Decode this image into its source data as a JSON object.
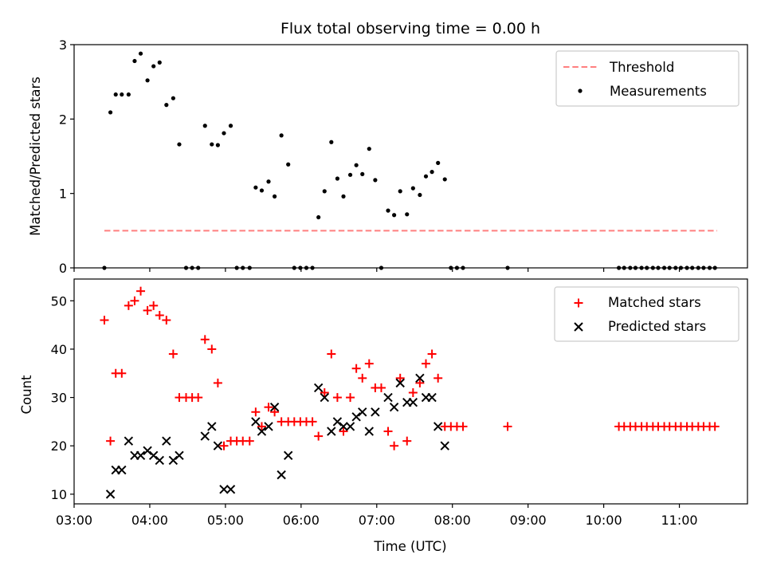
{
  "chart_data": [
    {
      "type": "scatter",
      "title": "Flux total observing time = 0.00 h",
      "xlabel": "",
      "ylabel": "Matched/Predicted stars",
      "ylim": [
        0,
        3
      ],
      "yticks": [
        0,
        1,
        2,
        3
      ],
      "xlim_hours": [
        3.0,
        11.9
      ],
      "grid": false,
      "legend_position": "upper right",
      "threshold": {
        "name": "Threshold",
        "value": 0.5,
        "x_range_hours": [
          3.4,
          11.5
        ],
        "color": "#ff7f7f",
        "style": "dashed"
      },
      "series": [
        {
          "name": "Measurements",
          "color": "#000000",
          "marker": "dot",
          "points": [
            [
              3.4,
              0.0
            ],
            [
              3.48,
              2.09
            ],
            [
              3.55,
              2.33
            ],
            [
              3.63,
              2.33
            ],
            [
              3.72,
              2.33
            ],
            [
              3.8,
              2.78
            ],
            [
              3.88,
              2.88
            ],
            [
              3.97,
              2.52
            ],
            [
              4.05,
              2.71
            ],
            [
              4.13,
              2.76
            ],
            [
              4.22,
              2.19
            ],
            [
              4.31,
              2.28
            ],
            [
              4.39,
              1.66
            ],
            [
              4.48,
              0.0
            ],
            [
              4.56,
              0.0
            ],
            [
              4.64,
              0.0
            ],
            [
              4.73,
              1.91
            ],
            [
              4.82,
              1.66
            ],
            [
              4.9,
              1.65
            ],
            [
              4.98,
              1.81
            ],
            [
              5.07,
              1.91
            ],
            [
              5.15,
              0.0
            ],
            [
              5.23,
              0.0
            ],
            [
              5.32,
              0.0
            ],
            [
              5.4,
              1.08
            ],
            [
              5.48,
              1.04
            ],
            [
              5.57,
              1.16
            ],
            [
              5.65,
              0.96
            ],
            [
              5.74,
              1.78
            ],
            [
              5.83,
              1.39
            ],
            [
              5.91,
              0.0
            ],
            [
              5.99,
              0.0
            ],
            [
              6.07,
              0.0
            ],
            [
              6.15,
              0.0
            ],
            [
              6.23,
              0.68
            ],
            [
              6.31,
              1.03
            ],
            [
              6.4,
              1.69
            ],
            [
              6.48,
              1.2
            ],
            [
              6.56,
              0.96
            ],
            [
              6.65,
              1.25
            ],
            [
              6.73,
              1.38
            ],
            [
              6.81,
              1.26
            ],
            [
              6.9,
              1.6
            ],
            [
              6.98,
              1.18
            ],
            [
              7.06,
              0.0
            ],
            [
              7.15,
              0.77
            ],
            [
              7.23,
              0.71
            ],
            [
              7.31,
              1.03
            ],
            [
              7.4,
              0.72
            ],
            [
              7.48,
              1.07
            ],
            [
              7.57,
              0.98
            ],
            [
              7.65,
              1.23
            ],
            [
              7.73,
              1.29
            ],
            [
              7.81,
              1.41
            ],
            [
              7.9,
              1.19
            ],
            [
              7.98,
              0.0
            ],
            [
              8.06,
              0.0
            ],
            [
              8.14,
              0.0
            ],
            [
              8.73,
              0.0
            ],
            [
              10.2,
              0.0
            ],
            [
              10.27,
              0.0
            ],
            [
              10.35,
              0.0
            ],
            [
              10.42,
              0.0
            ],
            [
              10.5,
              0.0
            ],
            [
              10.57,
              0.0
            ],
            [
              10.65,
              0.0
            ],
            [
              10.72,
              0.0
            ],
            [
              10.8,
              0.0
            ],
            [
              10.87,
              0.0
            ],
            [
              10.95,
              0.0
            ],
            [
              11.02,
              0.0
            ],
            [
              11.1,
              0.0
            ],
            [
              11.17,
              0.0
            ],
            [
              11.25,
              0.0
            ],
            [
              11.32,
              0.0
            ],
            [
              11.4,
              0.0
            ],
            [
              11.47,
              0.0
            ]
          ]
        }
      ]
    },
    {
      "type": "scatter",
      "title": "",
      "xlabel": "Time (UTC)",
      "ylabel": "Count",
      "ylim": [
        8,
        54.5
      ],
      "yticks": [
        10,
        20,
        30,
        40,
        50
      ],
      "xlim_hours": [
        3.0,
        11.9
      ],
      "xticks": [
        "03:00",
        "04:00",
        "05:00",
        "06:00",
        "07:00",
        "08:00",
        "09:00",
        "10:00",
        "11:00"
      ],
      "grid": false,
      "legend_position": "upper right",
      "series": [
        {
          "name": "Matched stars",
          "color": "#ff0000",
          "marker": "plus",
          "points": [
            [
              3.4,
              46
            ],
            [
              3.48,
              21
            ],
            [
              3.55,
              35
            ],
            [
              3.63,
              35
            ],
            [
              3.72,
              49
            ],
            [
              3.8,
              50
            ],
            [
              3.88,
              52
            ],
            [
              3.97,
              48
            ],
            [
              4.05,
              49
            ],
            [
              4.13,
              47
            ],
            [
              4.22,
              46
            ],
            [
              4.31,
              39
            ],
            [
              4.39,
              30
            ],
            [
              4.48,
              30
            ],
            [
              4.56,
              30
            ],
            [
              4.64,
              30
            ],
            [
              4.73,
              42
            ],
            [
              4.82,
              40
            ],
            [
              4.9,
              33
            ],
            [
              4.98,
              20
            ],
            [
              5.07,
              21
            ],
            [
              5.15,
              21
            ],
            [
              5.23,
              21
            ],
            [
              5.32,
              21
            ],
            [
              5.4,
              27
            ],
            [
              5.48,
              24
            ],
            [
              5.57,
              28
            ],
            [
              5.65,
              27
            ],
            [
              5.74,
              25
            ],
            [
              5.83,
              25
            ],
            [
              5.91,
              25
            ],
            [
              5.99,
              25
            ],
            [
              6.07,
              25
            ],
            [
              6.15,
              25
            ],
            [
              6.23,
              22
            ],
            [
              6.31,
              31
            ],
            [
              6.4,
              39
            ],
            [
              6.48,
              30
            ],
            [
              6.56,
              23
            ],
            [
              6.65,
              30
            ],
            [
              6.73,
              36
            ],
            [
              6.81,
              34
            ],
            [
              6.9,
              37
            ],
            [
              6.98,
              32
            ],
            [
              7.06,
              32
            ],
            [
              7.15,
              23
            ],
            [
              7.23,
              20
            ],
            [
              7.31,
              34
            ],
            [
              7.4,
              21
            ],
            [
              7.48,
              31
            ],
            [
              7.57,
              33
            ],
            [
              7.65,
              37
            ],
            [
              7.73,
              39
            ],
            [
              7.81,
              34
            ],
            [
              7.9,
              24
            ],
            [
              7.98,
              24
            ],
            [
              8.06,
              24
            ],
            [
              8.14,
              24
            ],
            [
              8.73,
              24
            ],
            [
              10.2,
              24
            ],
            [
              10.27,
              24
            ],
            [
              10.35,
              24
            ],
            [
              10.42,
              24
            ],
            [
              10.5,
              24
            ],
            [
              10.57,
              24
            ],
            [
              10.65,
              24
            ],
            [
              10.72,
              24
            ],
            [
              10.8,
              24
            ],
            [
              10.87,
              24
            ],
            [
              10.95,
              24
            ],
            [
              11.02,
              24
            ],
            [
              11.1,
              24
            ],
            [
              11.17,
              24
            ],
            [
              11.25,
              24
            ],
            [
              11.32,
              24
            ],
            [
              11.4,
              24
            ],
            [
              11.47,
              24
            ]
          ]
        },
        {
          "name": "Predicted stars",
          "color": "#000000",
          "marker": "x",
          "points": [
            [
              3.48,
              10
            ],
            [
              3.55,
              15
            ],
            [
              3.63,
              15
            ],
            [
              3.72,
              21
            ],
            [
              3.8,
              18
            ],
            [
              3.88,
              18
            ],
            [
              3.97,
              19
            ],
            [
              4.05,
              18
            ],
            [
              4.13,
              17
            ],
            [
              4.22,
              21
            ],
            [
              4.31,
              17
            ],
            [
              4.39,
              18
            ],
            [
              4.73,
              22
            ],
            [
              4.82,
              24
            ],
            [
              4.9,
              20
            ],
            [
              4.98,
              11
            ],
            [
              5.07,
              11
            ],
            [
              5.4,
              25
            ],
            [
              5.48,
              23
            ],
            [
              5.57,
              24
            ],
            [
              5.65,
              28
            ],
            [
              5.74,
              14
            ],
            [
              5.83,
              18
            ],
            [
              6.23,
              32
            ],
            [
              6.31,
              30
            ],
            [
              6.4,
              23
            ],
            [
              6.48,
              25
            ],
            [
              6.56,
              24
            ],
            [
              6.65,
              24
            ],
            [
              6.73,
              26
            ],
            [
              6.81,
              27
            ],
            [
              6.9,
              23
            ],
            [
              6.98,
              27
            ],
            [
              7.15,
              30
            ],
            [
              7.23,
              28
            ],
            [
              7.31,
              33
            ],
            [
              7.4,
              29
            ],
            [
              7.48,
              29
            ],
            [
              7.57,
              34
            ],
            [
              7.65,
              30
            ],
            [
              7.73,
              30
            ],
            [
              7.81,
              24
            ],
            [
              7.9,
              20
            ]
          ]
        }
      ]
    }
  ]
}
